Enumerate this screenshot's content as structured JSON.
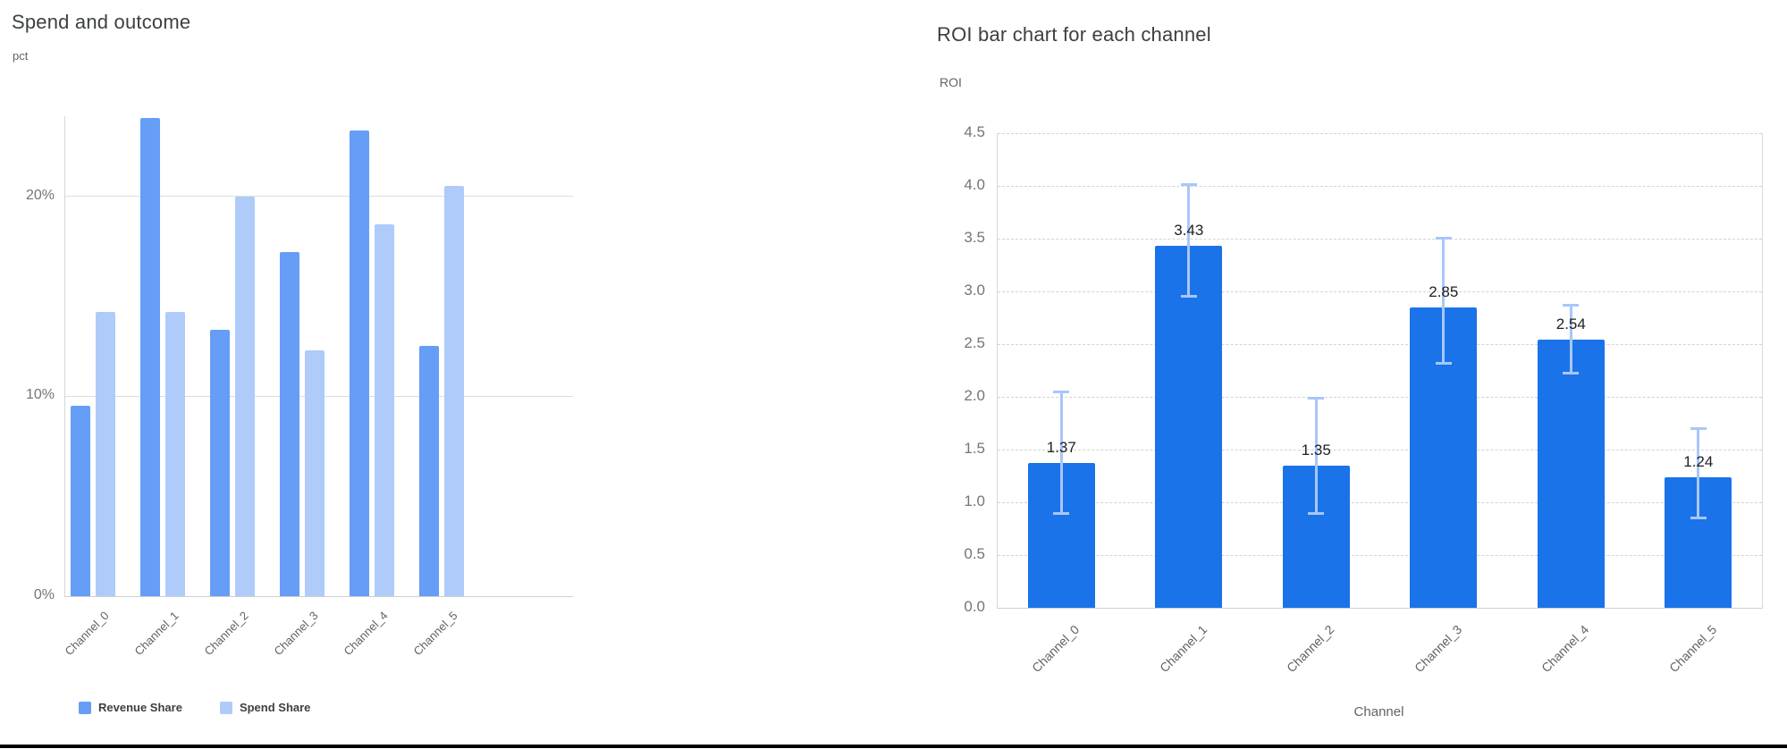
{
  "frame": {
    "background": "#FFFFFF",
    "bottom_bar_color": "#000000"
  },
  "left_chart": {
    "title": "Spend and outcome",
    "y_unit_label": "pct",
    "legend": [
      {
        "label": "Revenue Share",
        "color": "#669DF6"
      },
      {
        "label": "Spend Share",
        "color": "#AECBFA"
      }
    ]
  },
  "right_chart": {
    "title": "ROI bar chart for each channel",
    "y_axis_label": "ROI",
    "x_axis_label": "Channel"
  },
  "chart_data": [
    {
      "type": "bar",
      "title": "Spend and outcome",
      "xlabel": "",
      "ylabel": "pct",
      "categories": [
        "Channel_0",
        "Channel_1",
        "Channel_2",
        "Channel_3",
        "Channel_4",
        "Channel_5"
      ],
      "series": [
        {
          "name": "Revenue Share",
          "color": "#669DF6",
          "values": [
            9.5,
            23.9,
            13.3,
            17.2,
            23.3,
            12.5
          ]
        },
        {
          "name": "Spend Share",
          "color": "#AECBFA",
          "values": [
            14.2,
            14.2,
            20.0,
            12.3,
            18.6,
            20.5
          ]
        }
      ],
      "ylim": [
        0,
        24
      ],
      "yticks": [
        {
          "v": 0,
          "label": "0%"
        },
        {
          "v": 10,
          "label": "10%"
        },
        {
          "v": 20,
          "label": "20%"
        }
      ],
      "grid": "solid-horizontal",
      "legend_position": "bottom-left"
    },
    {
      "type": "bar",
      "title": "ROI bar chart for each channel",
      "xlabel": "Channel",
      "ylabel": "ROI",
      "categories": [
        "Channel_0",
        "Channel_1",
        "Channel_2",
        "Channel_3",
        "Channel_4",
        "Channel_5"
      ],
      "values": [
        1.37,
        3.43,
        1.35,
        2.85,
        2.54,
        1.24
      ],
      "value_labels": [
        "1.37",
        "3.43",
        "1.35",
        "2.85",
        "2.54",
        "1.24"
      ],
      "error_low": [
        0.89,
        2.95,
        0.89,
        2.31,
        2.22,
        0.85
      ],
      "error_high": [
        2.05,
        4.02,
        1.99,
        3.51,
        2.87,
        1.7
      ],
      "bar_color": "#1A73E8",
      "error_bar_color": "#A8C7FA",
      "ylim": [
        0,
        4.5
      ],
      "yticks": [
        {
          "v": 0,
          "label": "0.0"
        },
        {
          "v": 0.5,
          "label": "0.5"
        },
        {
          "v": 1,
          "label": "1.0"
        },
        {
          "v": 1.5,
          "label": "1.5"
        },
        {
          "v": 2,
          "label": "2.0"
        },
        {
          "v": 2.5,
          "label": "2.5"
        },
        {
          "v": 3,
          "label": "3.0"
        },
        {
          "v": 3.5,
          "label": "3.5"
        },
        {
          "v": 4,
          "label": "4.0"
        },
        {
          "v": 4.5,
          "label": "4.5"
        }
      ],
      "grid": "dashed-horizontal",
      "legend_position": "none"
    }
  ]
}
